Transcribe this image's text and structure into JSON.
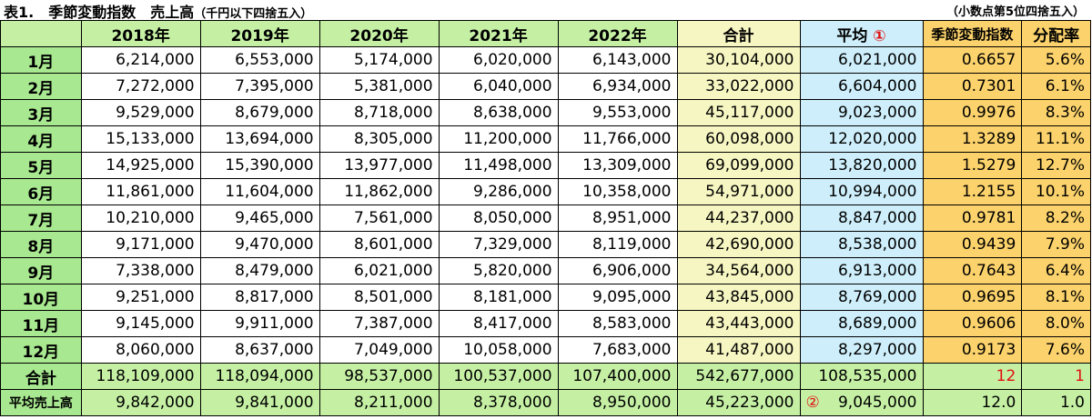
{
  "title": {
    "main": "表1.　季節変動指数　売上高",
    "sub": "（千円以下四捨五入）",
    "note": "（小数点第5位四捨五入）"
  },
  "headers": {
    "years": [
      "2018年",
      "2019年",
      "2020年",
      "2021年",
      "2022年"
    ],
    "total": "合計",
    "avg": "平均",
    "avg_marker": "①",
    "index": "季節変動指数",
    "ratio": "分配率"
  },
  "rows": [
    {
      "month": "1月",
      "values": [
        "6,214,000",
        "6,553,000",
        "5,174,000",
        "6,020,000",
        "6,143,000"
      ],
      "total": "30,104,000",
      "avg": "6,021,000",
      "index": "0.6657",
      "ratio": "5.6%"
    },
    {
      "month": "2月",
      "values": [
        "7,272,000",
        "7,395,000",
        "5,381,000",
        "6,040,000",
        "6,934,000"
      ],
      "total": "33,022,000",
      "avg": "6,604,000",
      "index": "0.7301",
      "ratio": "6.1%"
    },
    {
      "month": "3月",
      "values": [
        "9,529,000",
        "8,679,000",
        "8,718,000",
        "8,638,000",
        "9,553,000"
      ],
      "total": "45,117,000",
      "avg": "9,023,000",
      "index": "0.9976",
      "ratio": "8.3%"
    },
    {
      "month": "4月",
      "values": [
        "15,133,000",
        "13,694,000",
        "8,305,000",
        "11,200,000",
        "11,766,000"
      ],
      "total": "60,098,000",
      "avg": "12,020,000",
      "index": "1.3289",
      "ratio": "11.1%"
    },
    {
      "month": "5月",
      "values": [
        "14,925,000",
        "15,390,000",
        "13,977,000",
        "11,498,000",
        "13,309,000"
      ],
      "total": "69,099,000",
      "avg": "13,820,000",
      "index": "1.5279",
      "ratio": "12.7%"
    },
    {
      "month": "6月",
      "values": [
        "11,861,000",
        "11,604,000",
        "11,862,000",
        "9,286,000",
        "10,358,000"
      ],
      "total": "54,971,000",
      "avg": "10,994,000",
      "index": "1.2155",
      "ratio": "10.1%"
    },
    {
      "month": "7月",
      "values": [
        "10,210,000",
        "9,465,000",
        "7,561,000",
        "8,050,000",
        "8,951,000"
      ],
      "total": "44,237,000",
      "avg": "8,847,000",
      "index": "0.9781",
      "ratio": "8.2%"
    },
    {
      "month": "8月",
      "values": [
        "9,171,000",
        "9,470,000",
        "8,601,000",
        "7,329,000",
        "8,119,000"
      ],
      "total": "42,690,000",
      "avg": "8,538,000",
      "index": "0.9439",
      "ratio": "7.9%"
    },
    {
      "month": "9月",
      "values": [
        "7,338,000",
        "8,479,000",
        "6,021,000",
        "5,820,000",
        "6,906,000"
      ],
      "total": "34,564,000",
      "avg": "6,913,000",
      "index": "0.7643",
      "ratio": "6.4%"
    },
    {
      "month": "10月",
      "values": [
        "9,251,000",
        "8,817,000",
        "8,501,000",
        "8,181,000",
        "9,095,000"
      ],
      "total": "43,845,000",
      "avg": "8,769,000",
      "index": "0.9695",
      "ratio": "8.1%"
    },
    {
      "month": "11月",
      "values": [
        "9,145,000",
        "9,911,000",
        "7,387,000",
        "8,417,000",
        "8,583,000"
      ],
      "total": "43,443,000",
      "avg": "8,689,000",
      "index": "0.9606",
      "ratio": "8.0%"
    },
    {
      "month": "12月",
      "values": [
        "8,060,000",
        "8,637,000",
        "7,049,000",
        "10,058,000",
        "7,683,000"
      ],
      "total": "41,487,000",
      "avg": "8,297,000",
      "index": "0.9173",
      "ratio": "7.6%"
    }
  ],
  "total_row": {
    "label": "合計",
    "values": [
      "118,109,000",
      "118,094,000",
      "98,537,000",
      "100,537,000",
      "107,400,000"
    ],
    "total": "542,677,000",
    "avg": "108,535,000",
    "index": "12",
    "ratio": "1"
  },
  "avg_row": {
    "label": "平均売上高",
    "values": [
      "9,842,000",
      "9,841,000",
      "8,211,000",
      "8,378,000",
      "8,950,000"
    ],
    "total": "45,223,000",
    "avg_marker": "②",
    "avg": "9,045,000",
    "index": "12.0",
    "ratio": "1.0"
  },
  "colors": {
    "green_header": "#c5f0a4",
    "green_col": "#a8e890",
    "total_col": "#f6f6c2",
    "avg_col": "#cdeefa",
    "index_col": "#fbd26b",
    "red": "#e01010"
  }
}
